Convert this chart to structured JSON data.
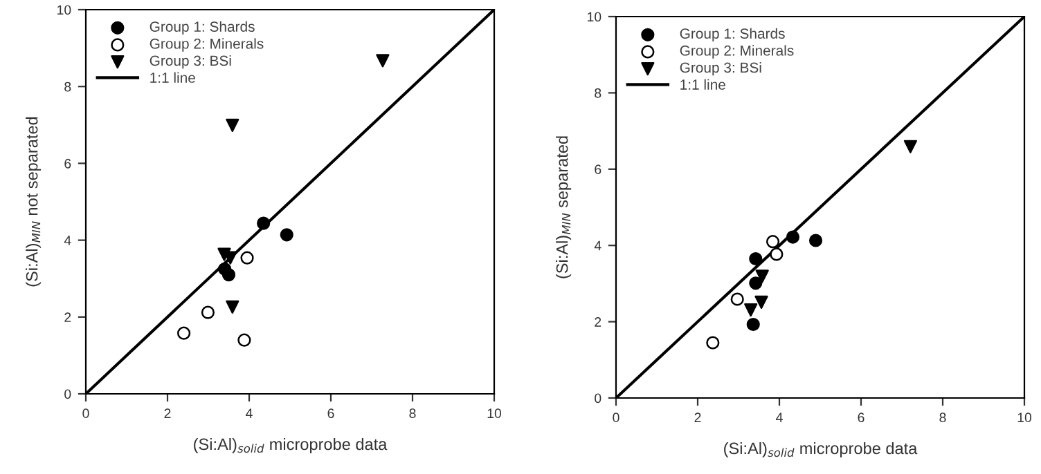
{
  "chart_data": [
    {
      "type": "scatter",
      "xlabel": "(Si:Al)$_{solid}$ microprobe data",
      "ylabel": "(Si:Al)$_{MIN}$ not separated",
      "xlim": [
        0,
        10
      ],
      "ylim": [
        0,
        10
      ],
      "xticks": [
        0,
        2,
        4,
        6,
        8,
        10
      ],
      "yticks": [
        0,
        2,
        4,
        6,
        8,
        10
      ],
      "grid": false,
      "legend": "top left",
      "series": [
        {
          "name": "Group 1: Shards",
          "color": "#000000",
          "marker": "circle",
          "x": [
            4.35,
            4.92,
            3.4,
            3.5
          ],
          "values": [
            4.44,
            4.14,
            3.25,
            3.1
          ]
        },
        {
          "name": "Group 2: Minerals",
          "color": "#ffffff",
          "marker": "circle",
          "x": [
            3.95,
            2.99,
            2.4,
            3.88
          ],
          "values": [
            3.54,
            2.12,
            1.58,
            1.4
          ]
        },
        {
          "name": "Group 3: BSi",
          "color": "#000000",
          "marker": "triangle",
          "x": [
            7.27,
            3.59,
            3.39,
            3.54,
            3.59
          ],
          "values": [
            8.67,
            6.99,
            3.63,
            3.54,
            2.26
          ]
        },
        {
          "name": "1:1 line",
          "type": "line",
          "color": "#000000",
          "marker": "none",
          "x": [
            0,
            10
          ],
          "values": [
            0,
            10
          ]
        }
      ]
    },
    {
      "type": "scatter",
      "xlabel": "(Si:Al)$_{solid}$ microprobe data",
      "ylabel": "(Si:Al)$_{MIN}$ separated",
      "xlim": [
        0,
        10
      ],
      "ylim": [
        0,
        10
      ],
      "xticks": [
        0,
        2,
        4,
        6,
        8,
        10
      ],
      "yticks": [
        0,
        2,
        4,
        6,
        8,
        10
      ],
      "grid": false,
      "legend": "top left",
      "series": [
        {
          "name": "Group 1: Shards",
          "color": "#000000",
          "marker": "circle",
          "x": [
            4.33,
            4.89,
            3.42,
            3.42,
            3.36
          ],
          "values": [
            4.22,
            4.13,
            3.65,
            3.01,
            1.93
          ]
        },
        {
          "name": "Group 2: Minerals",
          "color": "#ffffff",
          "marker": "circle",
          "x": [
            3.84,
            3.93,
            2.97,
            2.37
          ],
          "values": [
            4.1,
            3.77,
            2.59,
            1.45
          ]
        },
        {
          "name": "Group 3: BSi",
          "color": "#000000",
          "marker": "triangle",
          "x": [
            7.21,
            3.58,
            3.56,
            3.3
          ],
          "values": [
            6.59,
            3.19,
            2.51,
            2.31
          ]
        },
        {
          "name": "1:1 line",
          "type": "line",
          "color": "#000000",
          "marker": "none",
          "x": [
            0,
            10
          ],
          "values": [
            0,
            10
          ]
        }
      ]
    }
  ]
}
